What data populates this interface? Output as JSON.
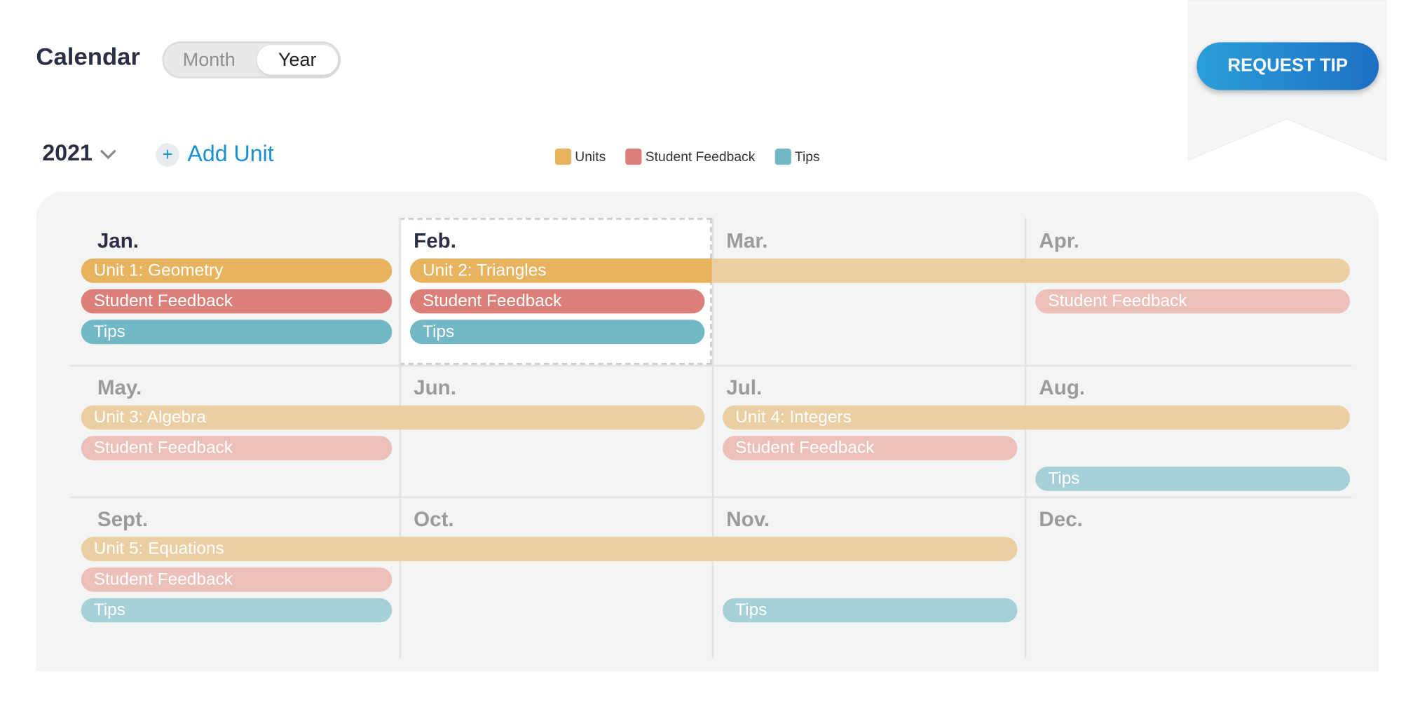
{
  "header": {
    "title": "Calendar",
    "view_options": [
      "Month",
      "Year"
    ],
    "selected_view": 1,
    "request_button": "REQUEST TIP"
  },
  "toolbar": {
    "year": "2021",
    "add_button": "Add Unit"
  },
  "legend": [
    {
      "key": "units",
      "label": "Units",
      "color": "#e8b35f",
      "faded_color": "#ebcfa3"
    },
    {
      "key": "feedback",
      "label": "Student Feedback",
      "color": "#dc7f78",
      "faded_color": "#ecbfb9"
    },
    {
      "key": "tips",
      "label": "Tips",
      "color": "#72b8c6",
      "faded_color": "#a5d0d8"
    }
  ],
  "calendar": {
    "selected_month": 1,
    "months": [
      "Jan.",
      "Feb.",
      "Mar.",
      "Apr.",
      "May.",
      "Jun.",
      "Jul.",
      "Aug.",
      "Sept.",
      "Oct.",
      "Nov.",
      "Dec."
    ],
    "events": [
      {
        "label": "Unit 1: Geometry",
        "kind": "units",
        "start": 0,
        "end": 0,
        "lane": 0
      },
      {
        "label": "Student Feedback",
        "kind": "feedback",
        "start": 0,
        "end": 0,
        "lane": 1
      },
      {
        "label": "Tips",
        "kind": "tips",
        "start": 0,
        "end": 0,
        "lane": 2
      },
      {
        "label": "Unit 2: Triangles",
        "kind": "units",
        "start": 1,
        "end": 3,
        "lane": 0
      },
      {
        "label": "Student Feedback",
        "kind": "feedback",
        "start": 1,
        "end": 1,
        "lane": 1
      },
      {
        "label": "Tips",
        "kind": "tips",
        "start": 1,
        "end": 1,
        "lane": 2
      },
      {
        "label": "Student Feedback",
        "kind": "feedback",
        "start": 3,
        "end": 3,
        "lane": 1
      },
      {
        "label": "Unit 3: Algebra",
        "kind": "units",
        "start": 4,
        "end": 5,
        "lane": 0
      },
      {
        "label": "Student Feedback",
        "kind": "feedback",
        "start": 4,
        "end": 4,
        "lane": 1
      },
      {
        "label": "Unit 4: Integers",
        "kind": "units",
        "start": 6,
        "end": 7,
        "lane": 0
      },
      {
        "label": "Student Feedback",
        "kind": "feedback",
        "start": 6,
        "end": 6,
        "lane": 1
      },
      {
        "label": "Tips",
        "kind": "tips",
        "start": 7,
        "end": 7,
        "lane": 2
      },
      {
        "label": "Unit 5: Equations",
        "kind": "units",
        "start": 8,
        "end": 10,
        "lane": 0
      },
      {
        "label": "Student Feedback",
        "kind": "feedback",
        "start": 8,
        "end": 8,
        "lane": 1
      },
      {
        "label": "Tips",
        "kind": "tips",
        "start": 8,
        "end": 8,
        "lane": 2
      },
      {
        "label": "Tips",
        "kind": "tips",
        "start": 10,
        "end": 10,
        "lane": 2
      }
    ]
  }
}
